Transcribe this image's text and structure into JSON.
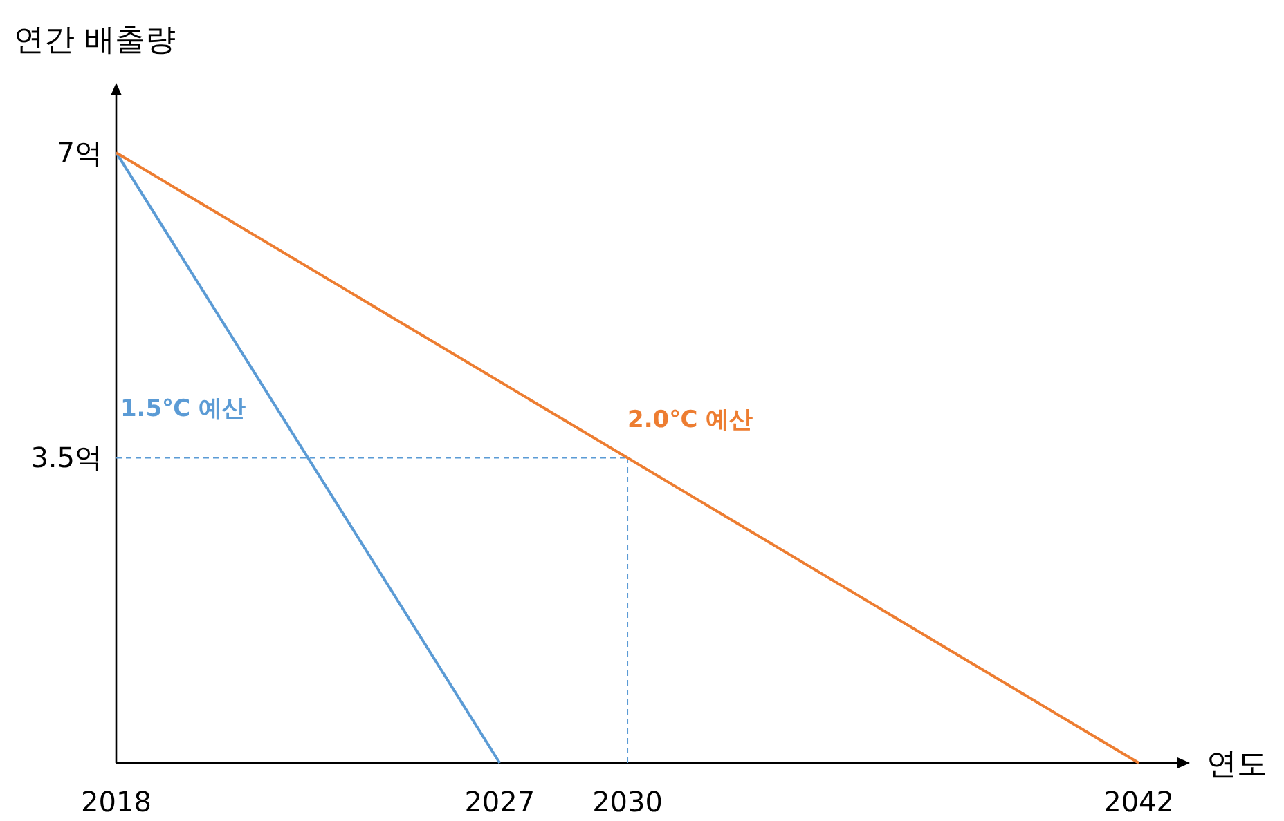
{
  "chart_data": {
    "type": "line",
    "xlabel": "연도",
    "ylabel": "연간 배출량",
    "xlim": [
      2018,
      2043.2
    ],
    "ylim": [
      0,
      7.8
    ],
    "xticks": [
      2018,
      2027,
      2030,
      2042
    ],
    "yticks": [
      {
        "value": 7,
        "label": "7억"
      },
      {
        "value": 3.5,
        "label": "3.5억"
      }
    ],
    "series": [
      {
        "name": "1.5℃ 예산",
        "color": "#5b9bd5",
        "x": [
          2018,
          2027
        ],
        "values": [
          7,
          0
        ]
      },
      {
        "name": "2.0℃ 예산",
        "color": "#ed7d31",
        "x": [
          2018,
          2042
        ],
        "values": [
          7,
          0
        ]
      }
    ],
    "ref_lines": [
      {
        "axis": "y",
        "value": 3.5,
        "label": null,
        "color": "#5b9bd5",
        "line_style": "dashed"
      },
      {
        "axis": "x",
        "value": 2030,
        "label": null,
        "color": "#5b9bd5",
        "line_style": "dashed"
      }
    ],
    "grid": false,
    "marker": "none",
    "line_style": "solid"
  }
}
